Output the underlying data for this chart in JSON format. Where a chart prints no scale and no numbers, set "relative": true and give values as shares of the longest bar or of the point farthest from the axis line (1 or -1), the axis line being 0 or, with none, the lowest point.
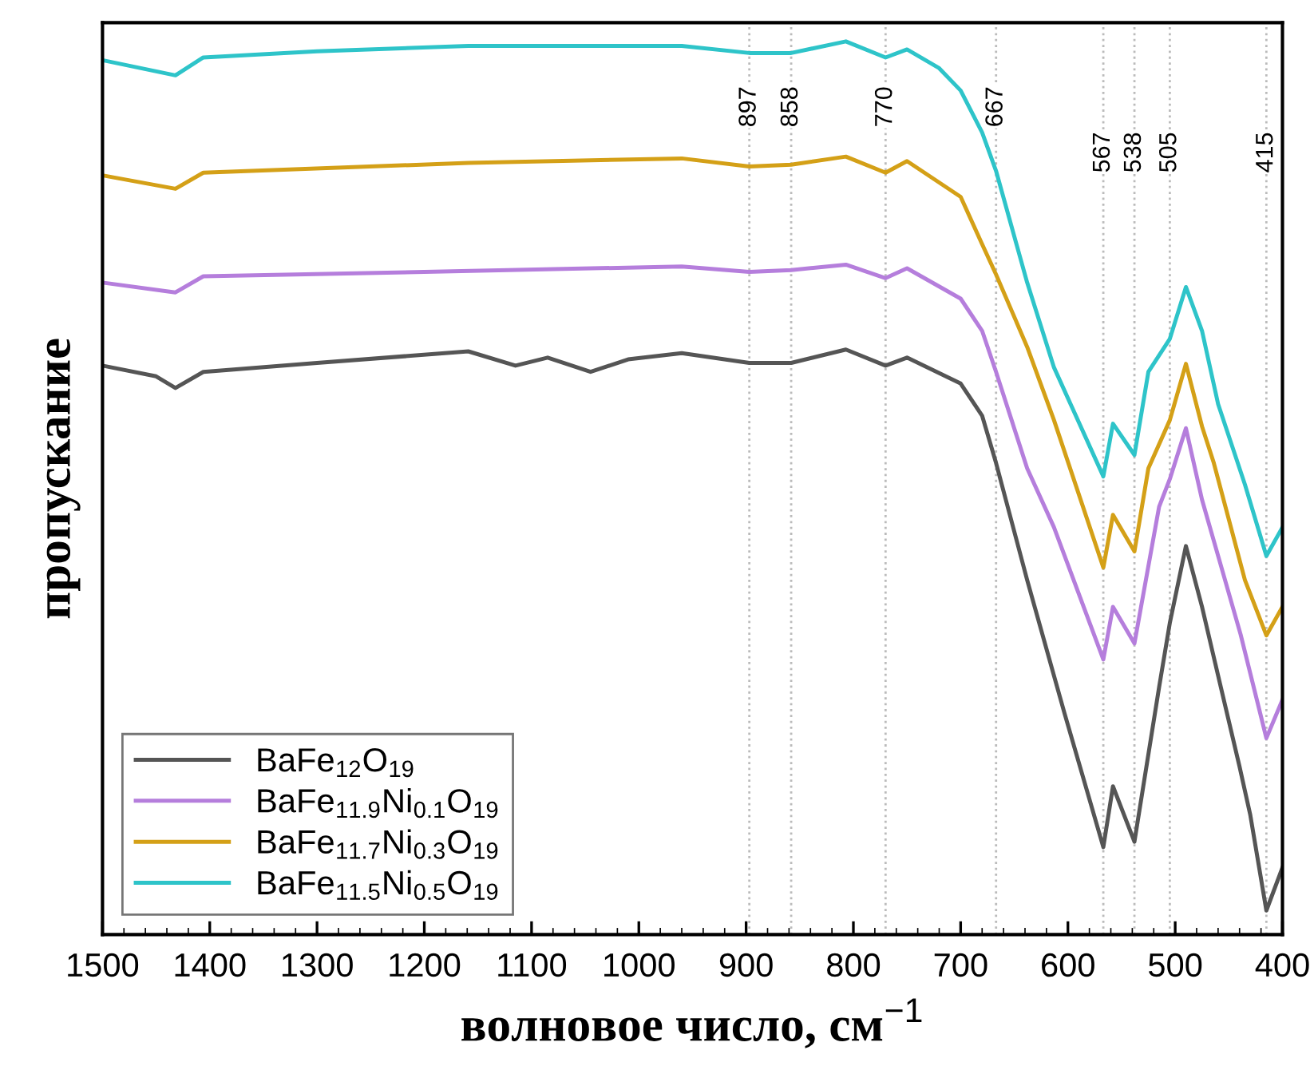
{
  "chart_data": {
    "type": "line",
    "relative": true,
    "xlabel": "волновое число, см$^{−1}$",
    "ylabel": "пропускание",
    "xlim": [
      1500,
      400
    ],
    "xticks": [
      1500,
      1400,
      1300,
      1200,
      1100,
      1000,
      900,
      800,
      700,
      600,
      500,
      400
    ],
    "legend": "bottom left",
    "grid": false,
    "marker": "none",
    "line_style": "solid",
    "series": [
      {
        "name": "BaFe$_{12}$O$_{19}$",
        "color": "#555555",
        "x": [
          1500,
          1450,
          1432,
          1406,
          1300,
          1159,
          1115,
          1085,
          1045,
          1010,
          960,
          897,
          858,
          807,
          770,
          750,
          700,
          680,
          667,
          638,
          603,
          567,
          558,
          538,
          515,
          505,
          490,
          475,
          460,
          440,
          430,
          415,
          400
        ],
        "values": [
          0.637,
          0.625,
          0.612,
          0.63,
          0.64,
          0.653,
          0.637,
          0.646,
          0.63,
          0.644,
          0.651,
          0.64,
          0.64,
          0.655,
          0.637,
          0.646,
          0.617,
          0.581,
          0.528,
          0.397,
          0.247,
          0.098,
          0.166,
          0.104,
          0.277,
          0.349,
          0.435,
          0.367,
          0.29,
          0.188,
          0.134,
          0.027,
          0.075
        ]
      },
      {
        "name": "BaFe$_{11.9}$Ni$_{0.1}$O$_{19}$",
        "color": "#b57edc",
        "x": [
          1500,
          1432,
          1406,
          1200,
          960,
          897,
          858,
          807,
          770,
          750,
          700,
          680,
          667,
          638,
          613,
          567,
          558,
          538,
          515,
          505,
          490,
          475,
          439,
          415,
          400
        ],
        "values": [
          0.73,
          0.719,
          0.737,
          0.742,
          0.748,
          0.742,
          0.744,
          0.75,
          0.735,
          0.746,
          0.712,
          0.676,
          0.63,
          0.522,
          0.456,
          0.308,
          0.367,
          0.326,
          0.479,
          0.51,
          0.567,
          0.487,
          0.336,
          0.22,
          0.263
        ]
      },
      {
        "name": "BaFe$_{11.7}$Ni$_{0.3}$O$_{19}$",
        "color": "#d4a017",
        "x": [
          1500,
          1432,
          1406,
          1159,
          960,
          897,
          858,
          807,
          770,
          750,
          700,
          680,
          667,
          638,
          613,
          567,
          558,
          538,
          525,
          505,
          490,
          475,
          464,
          435,
          415,
          400
        ],
        "values": [
          0.85,
          0.835,
          0.853,
          0.864,
          0.869,
          0.86,
          0.862,
          0.871,
          0.853,
          0.866,
          0.826,
          0.773,
          0.739,
          0.658,
          0.576,
          0.411,
          0.47,
          0.429,
          0.522,
          0.576,
          0.639,
          0.569,
          0.528,
          0.397,
          0.335,
          0.367
        ]
      },
      {
        "name": "BaFe$_{11.5}$Ni$_{0.5}$O$_{19}$",
        "color": "#2ec4c9",
        "x": [
          1500,
          1432,
          1406,
          1300,
          1159,
          960,
          897,
          858,
          807,
          770,
          750,
          720,
          700,
          680,
          667,
          638,
          613,
          567,
          558,
          538,
          525,
          505,
          490,
          475,
          460,
          435,
          415,
          400
        ],
        "values": [
          0.979,
          0.962,
          0.982,
          0.989,
          0.995,
          0.995,
          0.987,
          0.987,
          1.0,
          0.982,
          0.991,
          0.97,
          0.945,
          0.898,
          0.855,
          0.73,
          0.635,
          0.513,
          0.572,
          0.537,
          0.63,
          0.667,
          0.725,
          0.676,
          0.594,
          0.504,
          0.424,
          0.456
        ]
      }
    ],
    "ref_lines": [
      {
        "axis": "x",
        "value": 897,
        "label": "897"
      },
      {
        "axis": "x",
        "value": 858,
        "label": "858"
      },
      {
        "axis": "x",
        "value": 770,
        "label": "770"
      },
      {
        "axis": "x",
        "value": 667,
        "label": "667"
      },
      {
        "axis": "x",
        "value": 567,
        "label": "567"
      },
      {
        "axis": "x",
        "value": 538,
        "label": "538"
      },
      {
        "axis": "x",
        "value": 505,
        "label": "505"
      },
      {
        "axis": "x",
        "value": 415,
        "label": "415"
      }
    ]
  }
}
